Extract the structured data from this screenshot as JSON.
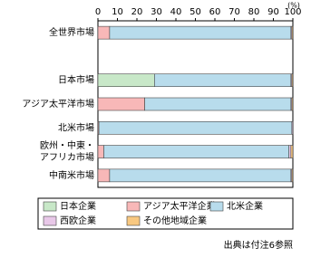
{
  "chart_data": {
    "type": "stacked-bar-horizontal",
    "unit_label": "(%)",
    "categories": [
      "全世界市場",
      null,
      "日本市場",
      "アジア太平洋市場",
      "北米市場",
      [
        "欧州・中東・",
        "アフリカ市場"
      ],
      "中南米市場"
    ],
    "series": [
      {
        "name": "日本企業",
        "color": "#c8e8c8",
        "values": [
          0,
          null,
          29,
          0,
          0,
          0,
          0
        ]
      },
      {
        "name": "アジア太平洋企業",
        "color": "#f8b8b8",
        "values": [
          6,
          null,
          0,
          24,
          0.5,
          3,
          6
        ]
      },
      {
        "name": "北米企業",
        "color": "#b8dcec",
        "values": [
          93,
          null,
          70,
          75,
          99,
          95,
          93
        ]
      },
      {
        "name": "西欧企業",
        "color": "#e8c8e8",
        "values": [
          0.5,
          null,
          0.5,
          0.5,
          0.5,
          1,
          0.5
        ]
      },
      {
        "name": "その他地域企業",
        "color": "#f8c880",
        "values": [
          0.5,
          null,
          0.5,
          0.5,
          0,
          1,
          0.5
        ]
      }
    ],
    "xlim": [
      0,
      100
    ],
    "xticks": [
      0,
      10,
      20,
      30,
      40,
      50,
      60,
      70,
      80,
      90,
      100
    ],
    "source": "出典は付注6参照"
  }
}
